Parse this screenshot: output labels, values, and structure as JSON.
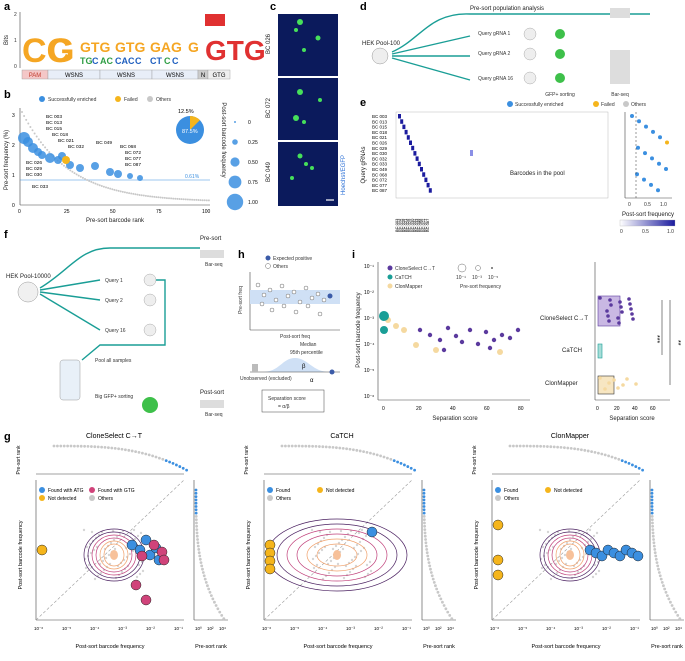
{
  "panels": {
    "a": {
      "letter": "a",
      "ylabel": "Bits",
      "ytick_top": "2",
      "ytick_mid": "1",
      "ytick_bot": "0",
      "seq_segments": [
        "PAM",
        "WSNS",
        "WSNS",
        "WSNS",
        "N",
        "GTG"
      ],
      "logo_letters": [
        "CC",
        "G",
        "GTG",
        "GTG",
        "GAG",
        "G",
        "GTG"
      ]
    },
    "b": {
      "letter": "b",
      "ylabel": "Pre-sort frequency (%)",
      "xlabel": "Pre-sort barcode rank",
      "right_label": "Post-sort barcode frequency",
      "legend": [
        "Successfully enriched",
        "Failed",
        "Others"
      ],
      "pie_small": "12.5%",
      "pie_big": "87.5%",
      "threshold": "0.61%",
      "barcodes": [
        "BC 003",
        "BC 013",
        "BC 015",
        "BC 018",
        "BC 021",
        "BC 026",
        "BC 029",
        "BC 030",
        "BC 032",
        "BC 033",
        "BC 049",
        "BC 068",
        "BC 072",
        "BC 077",
        "BC 087"
      ],
      "xticks": [
        "0",
        "25",
        "50",
        "75",
        "100"
      ],
      "yticks": [
        "0",
        "1",
        "2",
        "3"
      ],
      "size_ticks": [
        "0",
        "0.25",
        "0.50",
        "0.75",
        "1.00"
      ]
    },
    "c": {
      "letter": "c",
      "labels": [
        "BC 026",
        "BC 072",
        "BC 049"
      ],
      "stain": "Hoechst/EGFP"
    },
    "d": {
      "letter": "d",
      "title": "Pre-sort population analysis",
      "pool": "HEK Pool-100",
      "queries": [
        "Query gRNA 1",
        "Query gRNA 2",
        "Query gRNA 16"
      ],
      "sorting": "GFP+ sorting",
      "barseq": "Bar-seq"
    },
    "e": {
      "letter": "e",
      "legend": [
        "Successfully enriched",
        "Failed",
        "Others"
      ],
      "ylabel": "Query gRNAs",
      "xlabel": "Barcodes in the pool",
      "rows": [
        "BC 003",
        "BC 013",
        "BC 015",
        "BC 018",
        "BC 021",
        "BC 026",
        "BC 029",
        "BC 030",
        "BC 032",
        "BC 033",
        "BC 049",
        "BC 068",
        "BC 072",
        "BC 077",
        "BC 087"
      ],
      "right_label": "Post-sort frequency",
      "rticks": [
        "0",
        "0.5",
        "1.0"
      ],
      "cbar_ticks": [
        "0",
        "0.5",
        "1.0"
      ]
    },
    "f": {
      "letter": "f",
      "pool": "HEK Pool-10000",
      "queries": [
        "Query 1",
        "Query 2",
        "Query 16"
      ],
      "presort": "Pre-sort",
      "barseq1": "Bar-seq",
      "pool_all": "Pool all samples",
      "big_sort": "Big GFP+ sorting",
      "postsort": "Post-sort",
      "barseq2": "Bar-seq"
    },
    "h": {
      "letter": "h",
      "legend": [
        "Expected positive",
        "Others"
      ],
      "ylabel": "Pre-sort freq",
      "xlabel": "Post-sort freq",
      "median": "Median",
      "p95": "95th percentile",
      "unobserved": "Unobserved (excluded)",
      "alpha": "α",
      "beta": "β",
      "sep_label": "Separation score",
      "sep_formula": "= α/β"
    },
    "i": {
      "letter": "i",
      "ylabel": "Post-sort barcode frequency",
      "xlabel": "Separation score",
      "methods": [
        "CloneSelect C→T",
        "CaTCH",
        "ClonMapper"
      ],
      "size_title": "Pre-sort frequency",
      "size_ticks": [
        "10⁻¹",
        "10⁻³",
        "10⁻⁵"
      ],
      "xticks": [
        "0",
        "20",
        "40",
        "60",
        "80"
      ],
      "yticks": [
        "10⁻¹",
        "10⁻²",
        "10⁻³",
        "10⁻⁴",
        "10⁻⁵",
        "10⁻⁶"
      ],
      "box_xticks": [
        "0",
        "20",
        "40",
        "60"
      ],
      "box_xlabel": "Separation score",
      "sig1": "***",
      "sig2": "**"
    },
    "g": {
      "letter": "g",
      "plots": [
        {
          "title": "CloneSelect C→T",
          "legend": [
            "Found with ATG",
            "Found with GTG",
            "Not detected",
            "Others"
          ]
        },
        {
          "title": "CaTCH",
          "legend": [
            "Found",
            "Not detected",
            "Others"
          ]
        },
        {
          "title": "ClonMapper",
          "legend": [
            "Found",
            "Not detected",
            "Others"
          ]
        }
      ],
      "ylabel": "Post-sort barcode frequency",
      "xlabel": "Post-sort barcode frequency",
      "top_ylabel": "Pre-sort rank",
      "right_xlabel": "Pre-sort rank",
      "xticks": [
        "10⁻⁶",
        "10⁻⁵",
        "10⁻⁴",
        "10⁻³",
        "10⁻²",
        "10⁻¹"
      ],
      "yticks": [
        "10⁻¹",
        "10⁻²",
        "10⁻³",
        "10⁻⁴",
        "10⁻⁵",
        "10⁻⁶"
      ],
      "rank_ticks": [
        "10⁰",
        "10²",
        "10⁴"
      ]
    }
  },
  "colors": {
    "blue": "#3b8fe0",
    "yellow": "#f5b51c",
    "grey": "#c8c8c8",
    "teal": "#1a9e96",
    "purple": "#5b3a9e",
    "pink": "#d0437a",
    "dark": "#333333"
  }
}
